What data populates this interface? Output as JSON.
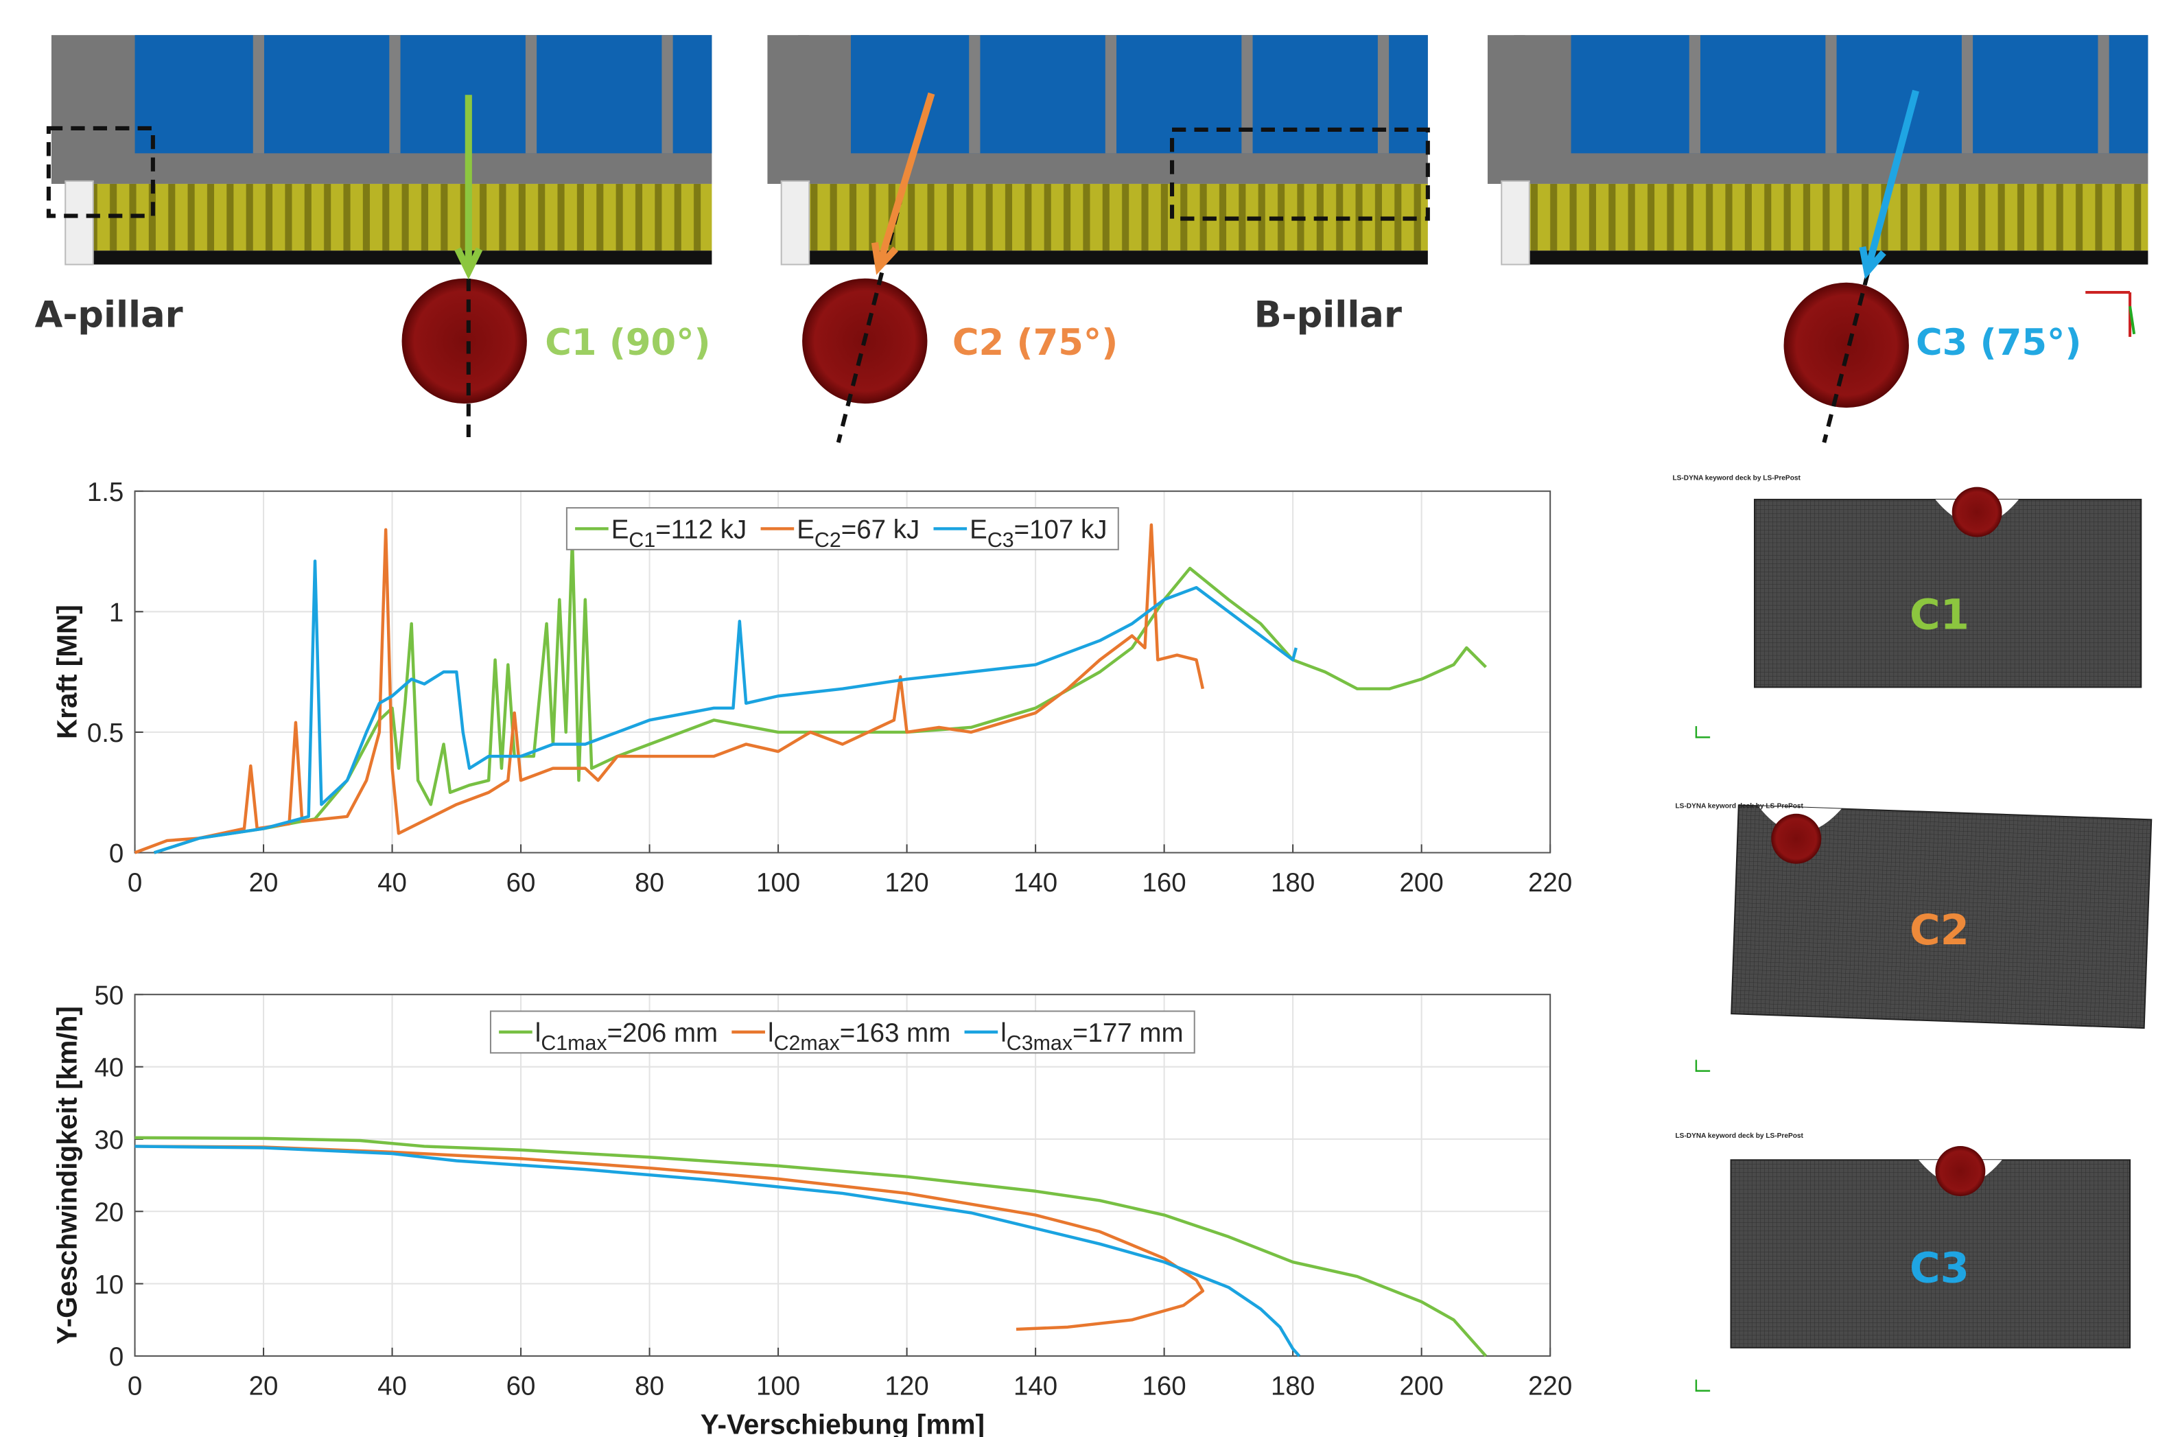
{
  "chart_data": [
    {
      "type": "line",
      "ylabel": "Kraft [MN]",
      "xlim": [
        0,
        220
      ],
      "xticks": [
        0,
        20,
        40,
        60,
        80,
        100,
        120,
        140,
        160,
        180,
        200,
        220
      ],
      "ylim": [
        0,
        1.5
      ],
      "yticks": [
        0,
        0.5,
        1,
        1.5
      ],
      "grid": true,
      "legend": "top",
      "series": [
        {
          "name": "EC1=112 kJ",
          "color": "#77c043",
          "x": [
            3,
            10,
            20,
            28,
            33,
            36,
            38,
            40,
            41,
            42,
            43,
            44,
            46,
            48,
            49,
            52,
            55,
            56,
            57,
            58,
            59,
            62,
            64,
            65,
            66,
            67,
            68,
            69,
            70,
            71,
            75,
            80,
            90,
            100,
            110,
            120,
            130,
            140,
            150,
            155,
            160,
            164,
            170,
            175,
            180,
            185,
            190,
            195,
            200,
            205,
            207,
            210
          ],
          "values": [
            0,
            0.06,
            0.1,
            0.14,
            0.3,
            0.45,
            0.55,
            0.6,
            0.35,
            0.62,
            0.95,
            0.3,
            0.2,
            0.45,
            0.25,
            0.28,
            0.3,
            0.8,
            0.35,
            0.78,
            0.4,
            0.4,
            0.95,
            0.45,
            1.05,
            0.5,
            1.3,
            0.3,
            1.05,
            0.35,
            0.4,
            0.45,
            0.55,
            0.5,
            0.5,
            0.5,
            0.52,
            0.6,
            0.75,
            0.85,
            1.05,
            1.18,
            1.05,
            0.95,
            0.8,
            0.75,
            0.68,
            0.68,
            0.72,
            0.78,
            0.85,
            0.77
          ]
        },
        {
          "name": "EC2=67 kJ",
          "color": "#e8772e",
          "x": [
            0,
            5,
            10,
            17,
            18,
            19,
            24,
            25,
            26,
            33,
            36,
            38,
            39,
            40,
            41,
            44,
            50,
            55,
            58,
            59,
            60,
            65,
            70,
            72,
            75,
            80,
            90,
            95,
            100,
            105,
            110,
            118,
            119,
            120,
            125,
            130,
            140,
            145,
            150,
            155,
            157,
            158,
            159,
            162,
            165,
            166
          ],
          "values": [
            0,
            0.05,
            0.06,
            0.1,
            0.36,
            0.1,
            0.12,
            0.54,
            0.13,
            0.15,
            0.3,
            0.5,
            1.34,
            0.35,
            0.08,
            0.12,
            0.2,
            0.25,
            0.3,
            0.58,
            0.3,
            0.35,
            0.35,
            0.3,
            0.4,
            0.4,
            0.4,
            0.45,
            0.42,
            0.5,
            0.45,
            0.55,
            0.73,
            0.5,
            0.52,
            0.5,
            0.58,
            0.68,
            0.8,
            0.9,
            0.85,
            1.36,
            0.8,
            0.82,
            0.8,
            0.68
          ]
        },
        {
          "name": "EC3=107 kJ",
          "color": "#1aa3e0",
          "x": [
            3,
            10,
            20,
            27,
            28,
            29,
            33,
            36,
            38,
            40,
            43,
            45,
            48,
            50,
            51,
            52,
            55,
            60,
            65,
            70,
            75,
            80,
            90,
            93,
            94,
            95,
            100,
            110,
            120,
            130,
            140,
            150,
            155,
            160,
            165,
            170,
            175,
            180,
            180.5
          ],
          "values": [
            0,
            0.06,
            0.1,
            0.15,
            1.21,
            0.2,
            0.3,
            0.5,
            0.62,
            0.65,
            0.72,
            0.7,
            0.75,
            0.75,
            0.5,
            0.35,
            0.4,
            0.4,
            0.45,
            0.45,
            0.5,
            0.55,
            0.6,
            0.6,
            0.96,
            0.62,
            0.65,
            0.68,
            0.72,
            0.75,
            0.78,
            0.88,
            0.95,
            1.05,
            1.1,
            1.0,
            0.9,
            0.8,
            0.85
          ]
        }
      ]
    },
    {
      "type": "line",
      "xlabel": "Y-Verschiebung [mm]",
      "ylabel": "Y-Geschwindigkeit [km/h]",
      "xlim": [
        0,
        220
      ],
      "xticks": [
        0,
        20,
        40,
        60,
        80,
        100,
        120,
        140,
        160,
        180,
        200,
        220
      ],
      "ylim": [
        0,
        50
      ],
      "yticks": [
        0,
        10,
        20,
        30,
        40,
        50
      ],
      "grid": true,
      "legend": "top",
      "series": [
        {
          "name": "lC1max=206 mm",
          "color": "#77c043",
          "x": [
            0,
            20,
            35,
            45,
            60,
            80,
            100,
            120,
            140,
            150,
            160,
            170,
            180,
            190,
            200,
            205,
            210
          ],
          "values": [
            30.2,
            30.1,
            29.8,
            29,
            28.5,
            27.5,
            26.3,
            24.8,
            22.8,
            21.5,
            19.5,
            16.5,
            13,
            11,
            7.5,
            5,
            0
          ]
        },
        {
          "name": "lC2max=163 mm",
          "color": "#e8772e",
          "x": [
            0,
            20,
            40,
            60,
            80,
            100,
            120,
            140,
            150,
            160,
            165,
            166,
            163,
            155,
            145,
            137
          ],
          "values": [
            29,
            28.9,
            28.2,
            27.3,
            26,
            24.5,
            22.5,
            19.5,
            17.2,
            13.5,
            10.5,
            9,
            7,
            5,
            4,
            3.7
          ]
        },
        {
          "name": "lC3max=177 mm",
          "color": "#1aa3e0",
          "x": [
            0,
            20,
            40,
            50,
            70,
            90,
            110,
            130,
            150,
            160,
            170,
            175,
            178,
            180,
            181
          ],
          "values": [
            29,
            28.8,
            28,
            27,
            25.8,
            24.3,
            22.5,
            19.8,
            15.5,
            13,
            9.5,
            6.5,
            4,
            1,
            0
          ]
        }
      ]
    }
  ],
  "scenes": {
    "a_pillar": "A-pillar",
    "b_pillar": "B-pillar",
    "c1": "C1 (90°)",
    "c2": "C2 (75°)",
    "c3": "C3 (75°)"
  },
  "simulations": [
    {
      "header": "LS-DYNA keyword deck by LS-PrePost",
      "label": "C1"
    },
    {
      "header": "LS-DYNA keyword deck by LS-PrePost",
      "label": "C2"
    },
    {
      "header": "LS-DYNA keyword deck by LS-PrePost",
      "label": "C3"
    }
  ]
}
